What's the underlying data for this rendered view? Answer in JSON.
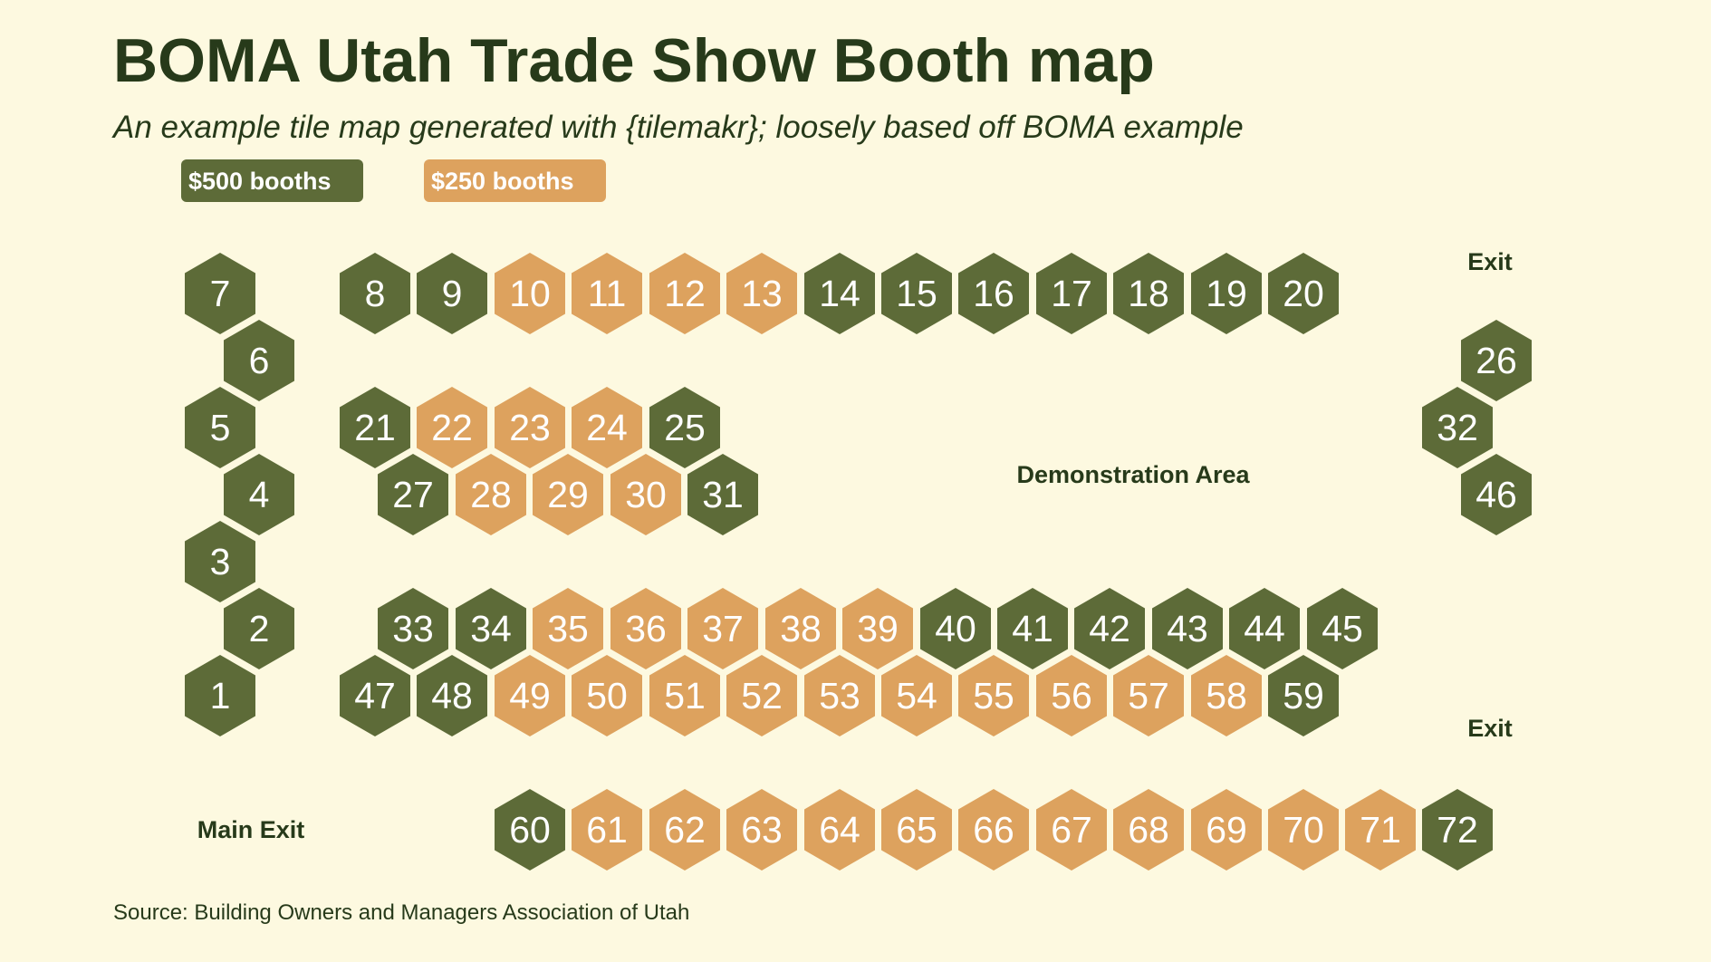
{
  "title": "BOMA Utah Trade Show Booth map",
  "subtitle": "An example tile map generated with {tilemakr}; loosely based off BOMA example",
  "caption": "Source: Building Owners and Managers Association of Utah",
  "colors": {
    "background": "#fdf9e0",
    "text": "#273a1a",
    "premium": "#5d6b38",
    "standard": "#dda25e"
  },
  "legend": [
    {
      "key": "premium",
      "label": "$500 booths"
    },
    {
      "key": "standard",
      "label": "$250 booths"
    }
  ],
  "areas": [
    {
      "id": "exit-top",
      "label": "Exit"
    },
    {
      "id": "exit-bottom",
      "label": "Exit"
    },
    {
      "id": "demonstration-area",
      "label": "Demonstration Area"
    },
    {
      "id": "main-exit",
      "label": "Main Exit"
    }
  ],
  "booths": [
    {
      "n": "1",
      "price": "premium"
    },
    {
      "n": "2",
      "price": "premium"
    },
    {
      "n": "3",
      "price": "premium"
    },
    {
      "n": "4",
      "price": "premium"
    },
    {
      "n": "5",
      "price": "premium"
    },
    {
      "n": "6",
      "price": "premium"
    },
    {
      "n": "7",
      "price": "premium"
    },
    {
      "n": "8",
      "price": "premium"
    },
    {
      "n": "9",
      "price": "premium"
    },
    {
      "n": "10",
      "price": "standard"
    },
    {
      "n": "11",
      "price": "standard"
    },
    {
      "n": "12",
      "price": "standard"
    },
    {
      "n": "13",
      "price": "standard"
    },
    {
      "n": "14",
      "price": "premium"
    },
    {
      "n": "15",
      "price": "premium"
    },
    {
      "n": "16",
      "price": "premium"
    },
    {
      "n": "17",
      "price": "premium"
    },
    {
      "n": "18",
      "price": "premium"
    },
    {
      "n": "19",
      "price": "premium"
    },
    {
      "n": "20",
      "price": "premium"
    },
    {
      "n": "21",
      "price": "premium"
    },
    {
      "n": "22",
      "price": "standard"
    },
    {
      "n": "23",
      "price": "standard"
    },
    {
      "n": "24",
      "price": "standard"
    },
    {
      "n": "25",
      "price": "premium"
    },
    {
      "n": "26",
      "price": "premium"
    },
    {
      "n": "27",
      "price": "premium"
    },
    {
      "n": "28",
      "price": "standard"
    },
    {
      "n": "29",
      "price": "standard"
    },
    {
      "n": "30",
      "price": "standard"
    },
    {
      "n": "31",
      "price": "premium"
    },
    {
      "n": "32",
      "price": "premium"
    },
    {
      "n": "33",
      "price": "premium"
    },
    {
      "n": "34",
      "price": "premium"
    },
    {
      "n": "35",
      "price": "standard"
    },
    {
      "n": "36",
      "price": "standard"
    },
    {
      "n": "37",
      "price": "standard"
    },
    {
      "n": "38",
      "price": "standard"
    },
    {
      "n": "39",
      "price": "standard"
    },
    {
      "n": "40",
      "price": "premium"
    },
    {
      "n": "41",
      "price": "premium"
    },
    {
      "n": "42",
      "price": "premium"
    },
    {
      "n": "43",
      "price": "premium"
    },
    {
      "n": "44",
      "price": "premium"
    },
    {
      "n": "45",
      "price": "premium"
    },
    {
      "n": "46",
      "price": "premium"
    },
    {
      "n": "47",
      "price": "premium"
    },
    {
      "n": "48",
      "price": "premium"
    },
    {
      "n": "49",
      "price": "standard"
    },
    {
      "n": "50",
      "price": "standard"
    },
    {
      "n": "51",
      "price": "standard"
    },
    {
      "n": "52",
      "price": "standard"
    },
    {
      "n": "53",
      "price": "standard"
    },
    {
      "n": "54",
      "price": "standard"
    },
    {
      "n": "55",
      "price": "standard"
    },
    {
      "n": "56",
      "price": "standard"
    },
    {
      "n": "57",
      "price": "standard"
    },
    {
      "n": "58",
      "price": "standard"
    },
    {
      "n": "59",
      "price": "premium"
    },
    {
      "n": "60",
      "price": "premium"
    },
    {
      "n": "61",
      "price": "standard"
    },
    {
      "n": "62",
      "price": "standard"
    },
    {
      "n": "63",
      "price": "standard"
    },
    {
      "n": "64",
      "price": "standard"
    },
    {
      "n": "65",
      "price": "standard"
    },
    {
      "n": "66",
      "price": "standard"
    },
    {
      "n": "67",
      "price": "standard"
    },
    {
      "n": "68",
      "price": "standard"
    },
    {
      "n": "69",
      "price": "standard"
    },
    {
      "n": "70",
      "price": "standard"
    },
    {
      "n": "71",
      "price": "standard"
    },
    {
      "n": "72",
      "price": "premium"
    }
  ]
}
